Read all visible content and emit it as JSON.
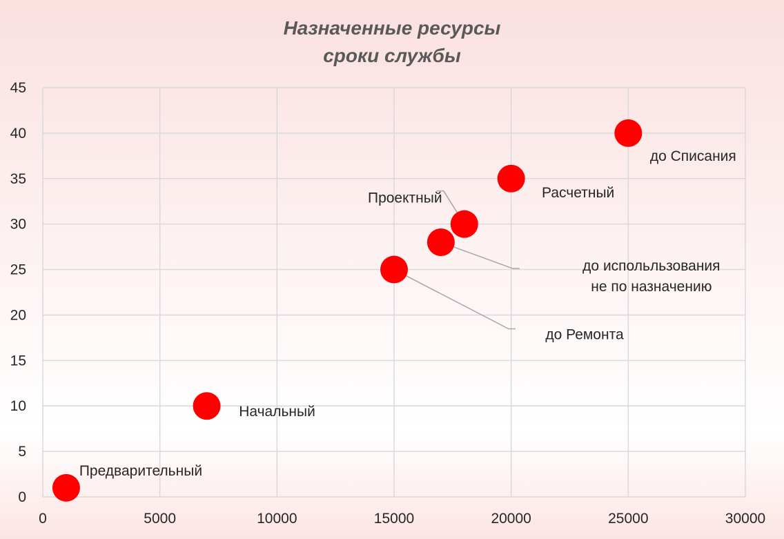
{
  "chart_data": {
    "type": "scatter",
    "title": [
      "Назначенные ресурсы",
      "сроки службы"
    ],
    "xlabel": "",
    "ylabel": "",
    "xlim": [
      0,
      30000
    ],
    "ylim": [
      0,
      45
    ],
    "x_ticks": [
      "0",
      "5000",
      "10000",
      "15000",
      "20000",
      "25000",
      "30000"
    ],
    "y_ticks": [
      "0",
      "5",
      "10",
      "15",
      "20",
      "25",
      "30",
      "35",
      "40",
      "45"
    ],
    "grid": true,
    "marker_color": "#ff0000",
    "points": [
      {
        "label": [
          "Предварительный"
        ],
        "x": 1000,
        "y": 1
      },
      {
        "label": [
          "Начальный"
        ],
        "x": 7000,
        "y": 10
      },
      {
        "label": [
          "до Ремонта"
        ],
        "x": 15000,
        "y": 25
      },
      {
        "label": [
          "до  испольльзования",
          "не по назначению"
        ],
        "x": 17000,
        "y": 28
      },
      {
        "label": [
          "Проектный"
        ],
        "x": 18000,
        "y": 30
      },
      {
        "label": [
          "Расчетный"
        ],
        "x": 20000,
        "y": 35
      },
      {
        "label": [
          "до Списания"
        ],
        "x": 25000,
        "y": 40
      }
    ]
  }
}
